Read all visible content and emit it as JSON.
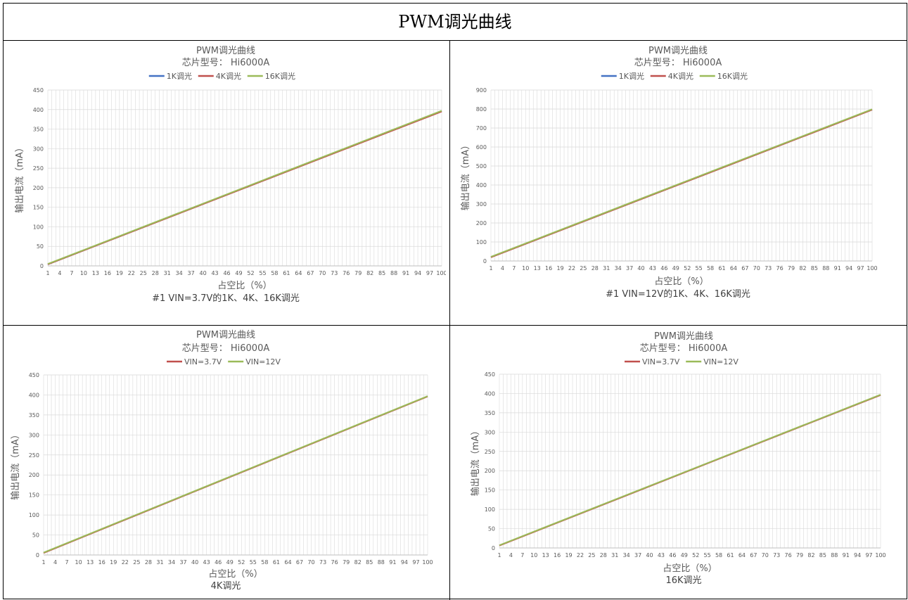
{
  "page": {
    "title": "PWM调光曲线"
  },
  "chart_data": [
    {
      "type": "line",
      "title": "PWM调光曲线",
      "subtitle": "芯片型号： Hi6000A",
      "xlabel": "占空比（%）",
      "ylabel": "输出电流（mA）",
      "caption": "#1  VIN=3.7V的1K、4K、16K调光",
      "ylim": [
        0,
        450
      ],
      "y_ticks": [
        "0",
        "50",
        "100",
        "150",
        "200",
        "250",
        "300",
        "350",
        "400",
        "450"
      ],
      "x_ticks": [
        "1",
        "4",
        "7",
        "10",
        "13",
        "16",
        "19",
        "22",
        "25",
        "28",
        "31",
        "34",
        "37",
        "40",
        "43",
        "46",
        "49",
        "52",
        "55",
        "58",
        "61",
        "64",
        "67",
        "70",
        "73",
        "76",
        "79",
        "82",
        "85",
        "88",
        "91",
        "94",
        "97",
        "100"
      ],
      "x": [
        1,
        100
      ],
      "grid": true,
      "legend_position": "top",
      "series": [
        {
          "name": "1K调光",
          "color": "#4472c4",
          "values": [
            4,
            396
          ]
        },
        {
          "name": "4K调光",
          "color": "#c0504d",
          "values": [
            4,
            395
          ]
        },
        {
          "name": "16K调光",
          "color": "#9bbb59",
          "values": [
            5,
            397
          ]
        }
      ]
    },
    {
      "type": "line",
      "title": "PWM调光曲线",
      "subtitle": "芯片型号： Hi6000A",
      "xlabel": "占空比（%）",
      "ylabel": "输出电流（mA）",
      "caption": "#1  VIN=12V的1K、4K、16K调光",
      "ylim": [
        0,
        900
      ],
      "y_ticks": [
        "0",
        "100",
        "200",
        "300",
        "400",
        "500",
        "600",
        "700",
        "800",
        "900"
      ],
      "x_ticks": [
        "1",
        "4",
        "7",
        "10",
        "13",
        "16",
        "19",
        "22",
        "25",
        "28",
        "31",
        "34",
        "37",
        "40",
        "43",
        "46",
        "49",
        "52",
        "55",
        "58",
        "61",
        "64",
        "67",
        "70",
        "73",
        "76",
        "79",
        "82",
        "85",
        "88",
        "91",
        "94",
        "97",
        "100"
      ],
      "x": [
        1,
        100
      ],
      "grid": true,
      "legend_position": "top",
      "series": [
        {
          "name": "1K调光",
          "color": "#4472c4",
          "values": [
            20,
            797
          ]
        },
        {
          "name": "4K调光",
          "color": "#c0504d",
          "values": [
            19,
            796
          ]
        },
        {
          "name": "16K调光",
          "color": "#9bbb59",
          "values": [
            22,
            799
          ]
        }
      ]
    },
    {
      "type": "line",
      "title": "PWM调光曲线",
      "subtitle": "芯片型号： Hi6000A",
      "xlabel": "占空比（%）",
      "ylabel": "输出电流（mA）",
      "caption": "4K调光",
      "ylim": [
        0,
        450
      ],
      "y_ticks": [
        "0",
        "50",
        "100",
        "150",
        "200",
        "250",
        "300",
        "350",
        "400",
        "450"
      ],
      "x_ticks": [
        "1",
        "4",
        "7",
        "10",
        "13",
        "16",
        "19",
        "22",
        "25",
        "28",
        "31",
        "34",
        "37",
        "40",
        "43",
        "46",
        "49",
        "52",
        "55",
        "58",
        "61",
        "64",
        "67",
        "70",
        "73",
        "76",
        "79",
        "82",
        "85",
        "88",
        "91",
        "94",
        "97",
        "100"
      ],
      "x": [
        1,
        100
      ],
      "grid": true,
      "legend_position": "top",
      "series": [
        {
          "name": "VIN=3.7V",
          "color": "#c0504d",
          "values": [
            5,
            396
          ]
        },
        {
          "name": "VIN=12V",
          "color": "#9bbb59",
          "values": [
            6,
            397
          ]
        }
      ]
    },
    {
      "type": "line",
      "title": "PWM调光曲线",
      "subtitle": "芯片型号： Hi6000A",
      "xlabel": "占空比（%）",
      "ylabel": "输出电流（mA）",
      "caption": "16K调光",
      "ylim": [
        0,
        450
      ],
      "y_ticks": [
        "0",
        "50",
        "100",
        "150",
        "200",
        "250",
        "300",
        "350",
        "400",
        "450"
      ],
      "x_ticks": [
        "1",
        "4",
        "7",
        "10",
        "13",
        "16",
        "19",
        "22",
        "25",
        "28",
        "31",
        "34",
        "37",
        "40",
        "43",
        "46",
        "49",
        "52",
        "55",
        "58",
        "61",
        "64",
        "67",
        "70",
        "73",
        "76",
        "79",
        "82",
        "85",
        "88",
        "91",
        "94",
        "97",
        "100"
      ],
      "x": [
        1,
        100
      ],
      "grid": true,
      "legend_position": "top",
      "series": [
        {
          "name": "VIN=3.7V",
          "color": "#c0504d",
          "values": [
            6,
            396
          ]
        },
        {
          "name": "VIN=12V",
          "color": "#9bbb59",
          "values": [
            7,
            397
          ]
        }
      ]
    }
  ]
}
